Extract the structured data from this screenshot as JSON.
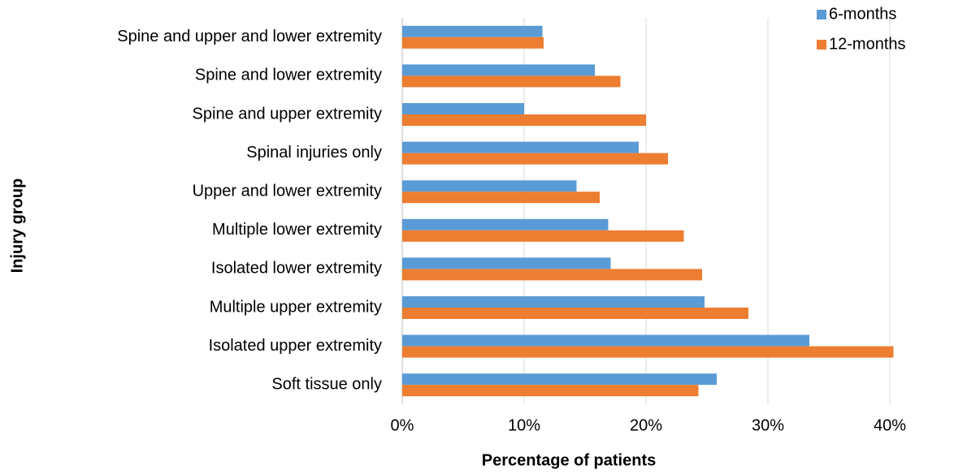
{
  "chart_data": {
    "type": "hbar",
    "x_label": "Percentage of patients",
    "y_label": "Injury group",
    "categories": [
      "Spine and upper and lower extremity",
      "Spine and lower extremity",
      "Spine and upper extremity",
      "Spinal injuries only",
      "Upper and lower extremity",
      "Multiple lower extremity",
      "Isolated lower extremity",
      "Multiple upper extremity",
      "Isolated upper extremity",
      "Soft tissue only"
    ],
    "series": [
      {
        "name": "6-months",
        "color": "#5b9bd5",
        "values": [
          11.5,
          15.8,
          10.0,
          19.4,
          14.3,
          16.9,
          17.1,
          24.8,
          33.4,
          25.8
        ]
      },
      {
        "name": "12-months",
        "color": "#ed7d31",
        "values": [
          11.6,
          17.9,
          20.0,
          21.8,
          16.2,
          23.1,
          24.6,
          28.4,
          40.3,
          24.3
        ]
      }
    ],
    "xlim": [
      0,
      40
    ],
    "xticks": [
      {
        "value": 0,
        "label": "0%"
      },
      {
        "value": 10,
        "label": "10%"
      },
      {
        "value": 20,
        "label": "20%"
      },
      {
        "value": 30,
        "label": "30%"
      },
      {
        "value": 40,
        "label": "40%"
      }
    ],
    "grid": true,
    "legend": "top-right"
  }
}
